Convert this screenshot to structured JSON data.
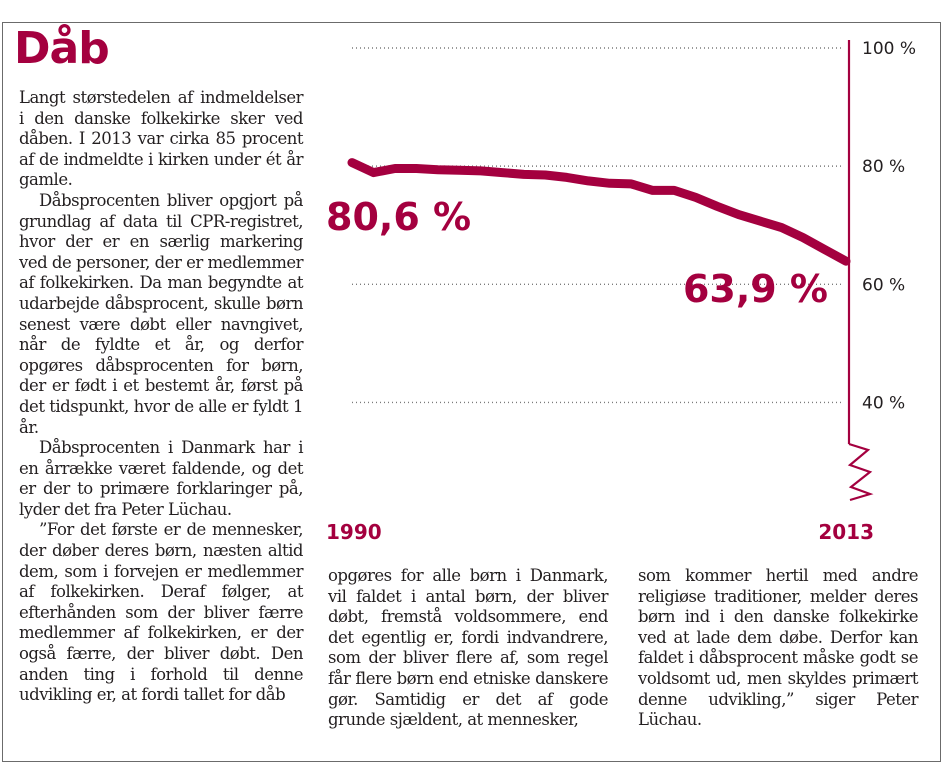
{
  "title": "Dåb",
  "col1_paragraphs": [
    "Langt størstedelen af indmeldelser i den danske folkekirke sker ved dåben. I 2013 var cirka 85 procent af de indmeldte i kirken under ét år gamle.",
    "Dåbsprocenten bliver opgjort på grundlag af data til CPR-registret, hvor der er en særlig markering ved de personer, der er medlemmer af folkekirken. Da man begyndte at udarbejde dåbsprocent, skulle børn senest være døbt eller navngivet, når de fyldte et år, og derfor opgøres dåbsprocenten for børn, der er født i et bestemt år, først på det tidspunkt, hvor de alle er fyldt 1 år.",
    "Dåbsprocenten i Danmark har i en årrække været faldende, og det er der to primære forklaringer på, lyder det fra Peter Lüchau.",
    "”For det første er de mennesker, der døber deres børn, næsten altid dem, som i forvejen er medlemmer af folkekirken. Deraf følger, at efterhånden som der bliver færre medlemmer af folkekirken, er der også færre, der bliver døbt. Den anden ting i forhold til denne udvikling er, at fordi tallet for dåb"
  ],
  "col2_text": "opgøres for alle børn i Danmark, vil faldet i antal børn, der bliver døbt, fremstå voldsommere, end det egentlig er, fordi indvandrere, som der bliver flere af, som regel får flere børn end etniske danskere gør. Samtidig er det af gode grunde sjældent, at mennesker,",
  "col3_text": "som kommer hertil med andre religiøse traditioner, melder deres børn ind i den danske folkekirke ved at lade dem døbe. Derfor kan faldet i dåbsprocent måske godt se voldsomt ud, men skyldes primært denne udvikling,” siger Peter Lüchau.",
  "colors": {
    "accent": "#a4003f",
    "text": "#231f20",
    "grid": "#7a7a7a",
    "frame": "#6b6b6b"
  },
  "chart_data": {
    "type": "line",
    "title": "",
    "xlabel": "",
    "ylabel": "",
    "x": [
      1990,
      1991,
      1992,
      1993,
      1994,
      1995,
      1996,
      1997,
      1998,
      1999,
      2000,
      2001,
      2002,
      2003,
      2004,
      2005,
      2006,
      2007,
      2008,
      2009,
      2010,
      2011,
      2012,
      2013
    ],
    "series": [
      {
        "name": "Dåbsprocent",
        "values": [
          80.6,
          78.9,
          79.6,
          79.6,
          79.4,
          79.3,
          79.2,
          78.9,
          78.6,
          78.5,
          78.1,
          77.5,
          77.1,
          77.0,
          75.9,
          75.9,
          74.7,
          73.2,
          71.8,
          70.7,
          69.6,
          67.9,
          65.9,
          63.9
        ]
      }
    ],
    "ylim": [
      25,
      100
    ],
    "yticks": [
      100,
      80,
      60,
      40
    ],
    "ytick_labels": [
      "100 %",
      "80 %",
      "60 %",
      "40 %"
    ],
    "xtick_labels": [
      "1990",
      "2013"
    ],
    "annotations": [
      {
        "label": "80,6 %",
        "value": 80.6,
        "year": 1990
      },
      {
        "label": "63,9 %",
        "value": 63.9,
        "year": 2013
      }
    ],
    "axis_break": true
  }
}
